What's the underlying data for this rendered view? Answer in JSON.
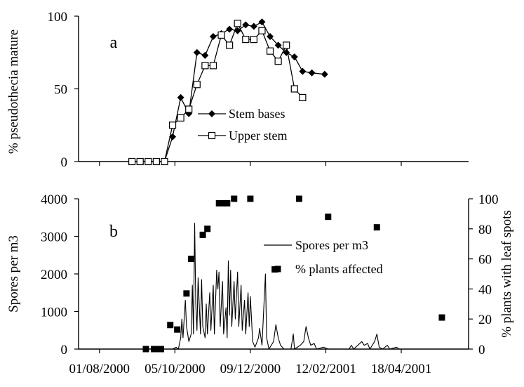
{
  "chart_data": [
    {
      "panel_label": "a",
      "type": "line",
      "ylabel": "% pseudothecia mature",
      "ylim": [
        0,
        100
      ],
      "yticks": [
        0,
        50,
        100
      ],
      "legend_placement": "center-right",
      "series": [
        {
          "name": "Stem bases",
          "marker": "filled-diamond",
          "points": [
            [
              "2000-08-29",
              0
            ],
            [
              "2000-09-05",
              0
            ],
            [
              "2000-09-12",
              0
            ],
            [
              "2000-09-19",
              0
            ],
            [
              "2000-09-26",
              0
            ],
            [
              "2000-10-03",
              17
            ],
            [
              "2000-10-10",
              44
            ],
            [
              "2000-10-17",
              33
            ],
            [
              "2000-10-24",
              75
            ],
            [
              "2000-10-31",
              73
            ],
            [
              "2000-11-07",
              86
            ],
            [
              "2000-11-14",
              88
            ],
            [
              "2000-11-21",
              91
            ],
            [
              "2000-11-28",
              90
            ],
            [
              "2000-12-05",
              94
            ],
            [
              "2000-12-12",
              93
            ],
            [
              "2000-12-19",
              96
            ],
            [
              "2000-12-26",
              86
            ],
            [
              "2001-01-02",
              80
            ],
            [
              "2001-01-09",
              75
            ],
            [
              "2001-01-16",
              72
            ],
            [
              "2001-01-23",
              62
            ],
            [
              "2001-01-31",
              61
            ],
            [
              "2001-02-11",
              60
            ]
          ]
        },
        {
          "name": "Upper stem",
          "marker": "open-square",
          "points": [
            [
              "2000-08-29",
              0
            ],
            [
              "2000-09-05",
              0
            ],
            [
              "2000-09-12",
              0
            ],
            [
              "2000-09-19",
              0
            ],
            [
              "2000-09-26",
              0
            ],
            [
              "2000-10-03",
              25
            ],
            [
              "2000-10-10",
              30
            ],
            [
              "2000-10-17",
              36
            ],
            [
              "2000-10-24",
              53
            ],
            [
              "2000-10-31",
              66
            ],
            [
              "2000-11-07",
              66
            ],
            [
              "2000-11-14",
              87
            ],
            [
              "2000-11-21",
              80
            ],
            [
              "2000-11-28",
              95
            ],
            [
              "2000-12-05",
              84
            ],
            [
              "2000-12-12",
              84
            ],
            [
              "2000-12-19",
              90
            ],
            [
              "2000-12-26",
              76
            ],
            [
              "2001-01-02",
              69
            ],
            [
              "2001-01-09",
              80
            ],
            [
              "2001-01-16",
              50
            ],
            [
              "2001-01-23",
              44
            ]
          ]
        }
      ]
    },
    {
      "panel_label": "b",
      "type": "line",
      "xlabel": "",
      "ylabel": "Spores per m3",
      "ylabel_right": "% plants with leaf spots",
      "ylim": [
        0,
        4000
      ],
      "yticks": [
        0,
        1000,
        2000,
        3000,
        4000
      ],
      "ylim_right": [
        0,
        100
      ],
      "yticks_right": [
        0,
        20,
        40,
        60,
        80,
        100
      ],
      "xticks": [
        "01/08/2000",
        "05/10/2000",
        "09/12/2000",
        "12/02/2001",
        "18/04/2001"
      ],
      "xlim": [
        "2000-07-14",
        "2001-06-15"
      ],
      "legend_placement": "center-right",
      "series": [
        {
          "name": "Spores per m3",
          "axis": "left",
          "style": "line",
          "points": [
            [
              "2000-09-26",
              0
            ],
            [
              "2000-10-03",
              0
            ],
            [
              "2000-10-06",
              50
            ],
            [
              "2000-10-08",
              0
            ],
            [
              "2000-10-10",
              300
            ],
            [
              "2000-10-11",
              800
            ],
            [
              "2000-10-12",
              300
            ],
            [
              "2000-10-14",
              1300
            ],
            [
              "2000-10-15",
              600
            ],
            [
              "2000-10-17",
              200
            ],
            [
              "2000-10-19",
              400
            ],
            [
              "2000-10-20",
              1700
            ],
            [
              "2000-10-21",
              400
            ],
            [
              "2000-10-22",
              3350
            ],
            [
              "2000-10-23",
              1200
            ],
            [
              "2000-10-24",
              500
            ],
            [
              "2000-10-25",
              1900
            ],
            [
              "2000-10-27",
              400
            ],
            [
              "2000-10-28",
              1850
            ],
            [
              "2000-10-29",
              600
            ],
            [
              "2000-10-31",
              300
            ],
            [
              "2000-11-01",
              1200
            ],
            [
              "2000-11-02",
              400
            ],
            [
              "2000-11-04",
              1500
            ],
            [
              "2000-11-05",
              500
            ],
            [
              "2000-11-07",
              1700
            ],
            [
              "2000-11-08",
              400
            ],
            [
              "2000-11-10",
              2100
            ],
            [
              "2000-11-11",
              1600
            ],
            [
              "2000-11-12",
              2050
            ],
            [
              "2000-11-13",
              600
            ],
            [
              "2000-11-15",
              1800
            ],
            [
              "2000-11-16",
              400
            ],
            [
              "2000-11-18",
              1100
            ],
            [
              "2000-11-19",
              300
            ],
            [
              "2000-11-20",
              2350
            ],
            [
              "2000-11-21",
              900
            ],
            [
              "2000-11-22",
              2100
            ],
            [
              "2000-11-23",
              600
            ],
            [
              "2000-11-25",
              1800
            ],
            [
              "2000-11-26",
              800
            ],
            [
              "2000-11-28",
              2050
            ],
            [
              "2000-11-29",
              600
            ],
            [
              "2000-12-01",
              1700
            ],
            [
              "2000-12-02",
              500
            ],
            [
              "2000-12-04",
              1300
            ],
            [
              "2000-12-05",
              400
            ],
            [
              "2000-12-07",
              1500
            ],
            [
              "2000-12-08",
              600
            ],
            [
              "2000-12-09",
              1400
            ],
            [
              "2000-12-11",
              200
            ],
            [
              "2000-12-13",
              50
            ],
            [
              "2000-12-16",
              300
            ],
            [
              "2000-12-17",
              550
            ],
            [
              "2000-12-19",
              100
            ],
            [
              "2000-12-22",
              2000
            ],
            [
              "2000-12-23",
              300
            ],
            [
              "2000-12-25",
              0
            ],
            [
              "2000-12-29",
              200
            ],
            [
              "2000-12-31",
              650
            ],
            [
              "2001-01-02",
              300
            ],
            [
              "2001-01-04",
              100
            ],
            [
              "2001-01-07",
              0
            ],
            [
              "2001-01-13",
              0
            ],
            [
              "2001-01-15",
              400
            ],
            [
              "2001-01-16",
              0
            ],
            [
              "2001-01-21",
              100
            ],
            [
              "2001-01-24",
              200
            ],
            [
              "2001-01-26",
              600
            ],
            [
              "2001-01-28",
              300
            ],
            [
              "2001-01-30",
              100
            ],
            [
              "2001-02-02",
              150
            ],
            [
              "2001-02-04",
              0
            ],
            [
              "2001-02-10",
              50
            ],
            [
              "2001-02-14",
              0
            ],
            [
              "2001-03-04",
              0
            ],
            [
              "2001-03-06",
              100
            ],
            [
              "2001-03-08",
              0
            ],
            [
              "2001-03-15",
              200
            ],
            [
              "2001-03-17",
              100
            ],
            [
              "2001-03-20",
              150
            ],
            [
              "2001-03-22",
              0
            ],
            [
              "2001-03-26",
              200
            ],
            [
              "2001-03-28",
              400
            ],
            [
              "2001-03-30",
              50
            ],
            [
              "2001-04-02",
              0
            ],
            [
              "2001-04-06",
              100
            ],
            [
              "2001-04-08",
              0
            ],
            [
              "2001-04-14",
              50
            ],
            [
              "2001-04-16",
              0
            ],
            [
              "2001-06-05",
              0
            ]
          ]
        },
        {
          "name": "% plants affected",
          "axis": "right",
          "style": "filled-square",
          "points": [
            [
              "2000-09-10",
              0
            ],
            [
              "2000-09-17",
              0
            ],
            [
              "2000-09-20",
              0
            ],
            [
              "2000-09-23",
              0
            ],
            [
              "2000-10-01",
              16
            ],
            [
              "2000-10-07",
              13
            ],
            [
              "2000-10-15",
              37
            ],
            [
              "2000-10-19",
              60
            ],
            [
              "2000-10-29",
              76
            ],
            [
              "2000-11-02",
              80
            ],
            [
              "2000-11-12",
              97
            ],
            [
              "2000-11-16",
              97
            ],
            [
              "2000-11-19",
              97
            ],
            [
              "2000-11-25",
              100
            ],
            [
              "2000-12-09",
              100
            ],
            [
              "2000-12-30",
              53
            ],
            [
              "2001-01-20",
              100
            ],
            [
              "2001-02-14",
              88
            ],
            [
              "2001-03-28",
              81
            ],
            [
              "2001-05-23",
              21
            ]
          ]
        }
      ]
    }
  ]
}
